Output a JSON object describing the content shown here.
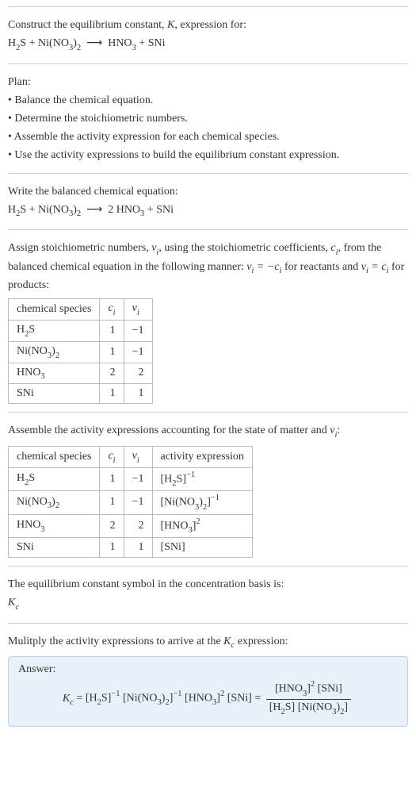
{
  "intro": {
    "line1": "Construct the equilibrium constant, ",
    "k": "K",
    "line1b": ", expression for:",
    "eq_lhs": "H₂S + Ni(NO₃)₂",
    "arrow": "⟶",
    "eq_rhs": "HNO₃ + SNi"
  },
  "plan": {
    "heading": "Plan:",
    "items": [
      "• Balance the chemical equation.",
      "• Determine the stoichiometric numbers.",
      "• Assemble the activity expression for each chemical species.",
      "• Use the activity expressions to build the equilibrium constant expression."
    ]
  },
  "balanced": {
    "heading": "Write the balanced chemical equation:",
    "eq_lhs": "H₂S + Ni(NO₃)₂",
    "arrow": "⟶",
    "eq_rhs": "2 HNO₃ + SNi"
  },
  "stoich": {
    "text_a": "Assign stoichiometric numbers, ",
    "nu_i": "νᵢ",
    "text_b": ", using the stoichiometric coefficients, ",
    "c_i": "cᵢ",
    "text_c": ", from the balanced chemical equation in the following manner: ",
    "rel1": "νᵢ = −cᵢ",
    "text_d": " for reactants and ",
    "rel2": "νᵢ = cᵢ",
    "text_e": " for products:",
    "headers": [
      "chemical species",
      "cᵢ",
      "νᵢ"
    ],
    "rows": [
      [
        "H₂S",
        "1",
        "−1"
      ],
      [
        "Ni(NO₃)₂",
        "1",
        "−1"
      ],
      [
        "HNO₃",
        "2",
        "2"
      ],
      [
        "SNi",
        "1",
        "1"
      ]
    ]
  },
  "activity": {
    "heading_a": "Assemble the activity expressions accounting for the state of matter and ",
    "nu_i": "νᵢ",
    "heading_b": ":",
    "headers": [
      "chemical species",
      "cᵢ",
      "νᵢ",
      "activity expression"
    ],
    "rows": [
      [
        "H₂S",
        "1",
        "−1",
        "[H₂S]⁻¹"
      ],
      [
        "Ni(NO₃)₂",
        "1",
        "−1",
        "[Ni(NO₃)₂]⁻¹"
      ],
      [
        "HNO₃",
        "2",
        "2",
        "[HNO₃]²"
      ],
      [
        "SNi",
        "1",
        "1",
        "[SNi]"
      ]
    ]
  },
  "kc_symbol": {
    "line1": "The equilibrium constant symbol in the concentration basis is:",
    "kc": "K",
    "kc_sub": "c"
  },
  "final": {
    "heading": "Mulitply the activity expressions to arrive at the ",
    "kc": "K",
    "kc_sub": "c",
    "heading_b": " expression:",
    "answer_label": "Answer:",
    "eq_left": "Kc = [H₂S]⁻¹ [Ni(NO₃)₂]⁻¹ [HNO₃]² [SNi] = ",
    "frac_num": "[HNO₃]² [SNi]",
    "frac_den": "[H₂S] [Ni(NO₃)₂]"
  },
  "style": {
    "border_color": "#cccccc",
    "text_color": "#333333",
    "answer_bg": "#e8f1fa",
    "answer_border": "#b9d1e8",
    "table_border": "#bbbbbb",
    "font_size_body": 14,
    "font_size_subsup": 10.5
  }
}
